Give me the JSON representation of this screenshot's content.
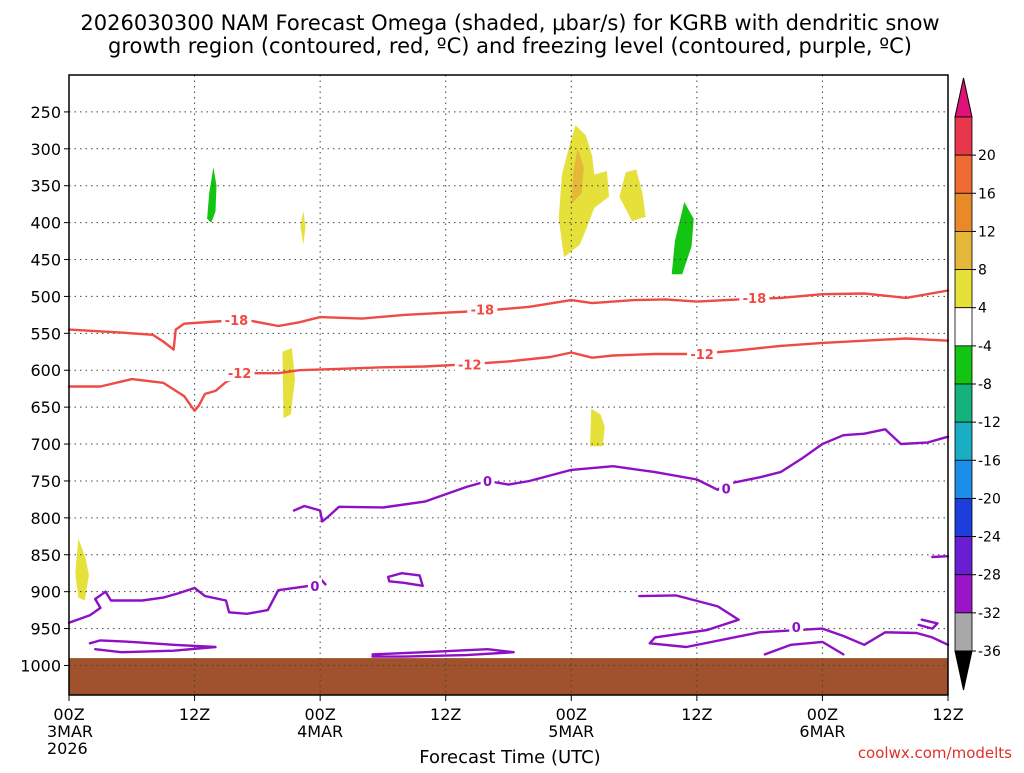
{
  "chart_data": {
    "type": "heatmap",
    "title_line1": "2026030300 NAM Forecast Omega (shaded, μbar/s) for KGRB with dendritic snow",
    "title_line2": "growth region (contoured, red, ºC) and freezing level (contoured, purple, ºC)",
    "xlabel": "Forecast Time (UTC)",
    "credit": "coolwx.com/modelts",
    "x_unit": "hours since 2026-03-03 00Z",
    "xlim": [
      0,
      84
    ],
    "y_unit": "hPa",
    "ylim": [
      200,
      1040
    ],
    "x_ticks": [
      {
        "h": 0,
        "label": "00Z",
        "date": "3MAR",
        "year": "2026"
      },
      {
        "h": 12,
        "label": "12Z",
        "date": "",
        "year": ""
      },
      {
        "h": 24,
        "label": "00Z",
        "date": "4MAR",
        "year": ""
      },
      {
        "h": 36,
        "label": "12Z",
        "date": "",
        "year": ""
      },
      {
        "h": 48,
        "label": "00Z",
        "date": "5MAR",
        "year": ""
      },
      {
        "h": 60,
        "label": "12Z",
        "date": "",
        "year": ""
      },
      {
        "h": 72,
        "label": "00Z",
        "date": "6MAR",
        "year": ""
      },
      {
        "h": 84,
        "label": "12Z",
        "date": "",
        "year": ""
      }
    ],
    "y_ticks": [
      250,
      300,
      350,
      400,
      450,
      500,
      550,
      600,
      650,
      700,
      750,
      800,
      850,
      900,
      950,
      1000
    ],
    "colorbar": {
      "labels": [
        "20",
        "16",
        "12",
        "8",
        "4",
        "-4",
        "-8",
        "-12",
        "-16",
        "-20",
        "-24",
        "-28",
        "-32",
        "-36"
      ],
      "colors": [
        "#e8364c",
        "#f06a34",
        "#e88a28",
        "#e6b83a",
        "#e6e03a",
        "#ffffff",
        "#13c413",
        "#14b27c",
        "#1aaec4",
        "#1a8ee8",
        "#1c3fdc",
        "#6a1ed4",
        "#9a14c8",
        "#a8a8a8"
      ],
      "top_arrow_color": "#e0127a",
      "bottom_arrow_color": "#000000"
    },
    "terrain_color": "#a0522d",
    "terrain_top_hPa": 990,
    "omega_regions": [
      {
        "name": "omega-minus-6-a",
        "value": -6,
        "color": "#13c413",
        "pts": [
          [
            13.2,
            395
          ],
          [
            13.4,
            360
          ],
          [
            13.8,
            325
          ],
          [
            14.1,
            350
          ],
          [
            14.0,
            385
          ],
          [
            13.6,
            400
          ]
        ]
      },
      {
        "name": "omega-plus-5-a",
        "value": 5,
        "color": "#e6e03a",
        "pts": [
          [
            22.1,
            405
          ],
          [
            22.4,
            385
          ],
          [
            22.6,
            405
          ],
          [
            22.4,
            430
          ]
        ]
      },
      {
        "name": "omega-plus-5-b",
        "value": 5,
        "color": "#e6e03a",
        "pts": [
          [
            20.4,
            575
          ],
          [
            21.3,
            570
          ],
          [
            21.6,
            612
          ],
          [
            21.2,
            660
          ],
          [
            20.5,
            665
          ]
        ]
      },
      {
        "name": "omega-plus-5-c",
        "value": 5,
        "color": "#e6e03a",
        "pts": [
          [
            0.6,
            875
          ],
          [
            0.9,
            828
          ],
          [
            1.6,
            855
          ],
          [
            1.9,
            878
          ],
          [
            1.5,
            912
          ],
          [
            0.9,
            908
          ]
        ]
      },
      {
        "name": "omega-plus-5-d",
        "value": 5,
        "color": "#e6e03a",
        "pts": [
          [
            47.3,
            447
          ],
          [
            46.8,
            395
          ],
          [
            47.1,
            335
          ],
          [
            47.9,
            292
          ],
          [
            48.4,
            268
          ],
          [
            49.4,
            282
          ],
          [
            50.0,
            310
          ],
          [
            50.2,
            335
          ],
          [
            51.4,
            330
          ],
          [
            51.6,
            365
          ],
          [
            50.2,
            380
          ],
          [
            49.4,
            410
          ],
          [
            48.8,
            430
          ]
        ]
      },
      {
        "name": "omega-plus-9-d",
        "value": 9,
        "color": "#e6b83a",
        "pts": [
          [
            48.0,
            375
          ],
          [
            48.2,
            330
          ],
          [
            48.6,
            300
          ],
          [
            49.2,
            325
          ],
          [
            49.0,
            360
          ]
        ]
      },
      {
        "name": "omega-plus-5-e",
        "value": 5,
        "color": "#e6e03a",
        "pts": [
          [
            52.6,
            365
          ],
          [
            53.2,
            332
          ],
          [
            54.2,
            328
          ],
          [
            54.8,
            360
          ],
          [
            55.1,
            392
          ],
          [
            53.8,
            398
          ]
        ]
      },
      {
        "name": "omega-minus-6-b",
        "value": -6,
        "color": "#13c413",
        "pts": [
          [
            57.6,
            470
          ],
          [
            57.9,
            425
          ],
          [
            58.8,
            372
          ],
          [
            59.7,
            395
          ],
          [
            59.5,
            432
          ],
          [
            58.6,
            470
          ]
        ]
      },
      {
        "name": "omega-plus-5-f",
        "value": 5,
        "color": "#e6e03a",
        "pts": [
          [
            49.8,
            703
          ],
          [
            49.9,
            652
          ],
          [
            50.8,
            660
          ],
          [
            51.2,
            677
          ],
          [
            51.0,
            703
          ]
        ]
      }
    ],
    "contours": [
      {
        "name": "contour-minus-18",
        "label": "-18",
        "color": "#ef4a44",
        "label_at": [
          [
            16.0,
            532
          ],
          [
            39.5,
            518
          ],
          [
            65.5,
            502
          ]
        ],
        "pts": [
          [
            0,
            545
          ],
          [
            5,
            549
          ],
          [
            8,
            552
          ],
          [
            9,
            561
          ],
          [
            10,
            572
          ],
          [
            10.2,
            545
          ],
          [
            11,
            537
          ],
          [
            14,
            534
          ],
          [
            17,
            532
          ],
          [
            20,
            540
          ],
          [
            22,
            535
          ],
          [
            24,
            528
          ],
          [
            28,
            530
          ],
          [
            32,
            525
          ],
          [
            36,
            522
          ],
          [
            40,
            519
          ],
          [
            44,
            514
          ],
          [
            48,
            505
          ],
          [
            50,
            509
          ],
          [
            54,
            505
          ],
          [
            57,
            504
          ],
          [
            60,
            507
          ],
          [
            64,
            504
          ],
          [
            68,
            502
          ],
          [
            72,
            497
          ],
          [
            76,
            496
          ],
          [
            80,
            502
          ],
          [
            84,
            492
          ]
        ]
      },
      {
        "name": "contour-minus-12",
        "label": "-12",
        "color": "#ef4a44",
        "label_at": [
          [
            16.3,
            604
          ],
          [
            38.3,
            592
          ],
          [
            60.5,
            578
          ]
        ],
        "pts": [
          [
            0,
            622
          ],
          [
            3,
            622
          ],
          [
            6,
            612
          ],
          [
            9,
            617
          ],
          [
            11,
            635
          ],
          [
            12,
            655
          ],
          [
            12.4,
            648
          ],
          [
            13,
            632
          ],
          [
            14,
            628
          ],
          [
            15,
            616
          ],
          [
            17,
            604
          ],
          [
            20,
            604
          ],
          [
            22,
            600
          ],
          [
            26,
            598
          ],
          [
            30,
            596
          ],
          [
            34,
            595
          ],
          [
            38,
            592
          ],
          [
            42,
            588
          ],
          [
            46,
            582
          ],
          [
            48,
            576
          ],
          [
            50,
            583
          ],
          [
            52,
            580
          ],
          [
            56,
            578
          ],
          [
            60,
            578
          ],
          [
            64,
            573
          ],
          [
            68,
            567
          ],
          [
            72,
            563
          ],
          [
            76,
            560
          ],
          [
            80,
            557
          ],
          [
            84,
            560
          ]
        ]
      },
      {
        "name": "contour-freezing-main",
        "label": "0",
        "color": "#8e10c4",
        "label_at": [
          [
            40.0,
            750
          ],
          [
            62.8,
            760
          ]
        ],
        "pts": [
          [
            21.5,
            790
          ],
          [
            22.5,
            784
          ],
          [
            24.0,
            790
          ],
          [
            24.2,
            805
          ],
          [
            24.8,
            798
          ],
          [
            25.8,
            785
          ],
          [
            30,
            786
          ],
          [
            34,
            778
          ],
          [
            38,
            758
          ],
          [
            40,
            750
          ],
          [
            42,
            755
          ],
          [
            44,
            750
          ],
          [
            48,
            735
          ],
          [
            52,
            730
          ],
          [
            56,
            738
          ],
          [
            60,
            748
          ],
          [
            62,
            762
          ],
          [
            62.6,
            755
          ],
          [
            66,
            745
          ],
          [
            68,
            738
          ],
          [
            70,
            720
          ],
          [
            72,
            700
          ],
          [
            74,
            688
          ],
          [
            76,
            686
          ],
          [
            78,
            680
          ],
          [
            79.5,
            700
          ],
          [
            82,
            698
          ],
          [
            84,
            690
          ]
        ]
      },
      {
        "name": "contour-freezing-low",
        "label": "0",
        "color": "#8e10c4",
        "label_at": [
          [
            23.5,
            892
          ]
        ],
        "pts": [
          [
            0,
            942
          ],
          [
            2,
            932
          ],
          [
            3,
            922
          ],
          [
            2.5,
            910
          ],
          [
            3.5,
            900
          ],
          [
            4,
            912
          ],
          [
            7,
            912
          ],
          [
            9,
            908
          ],
          [
            10.5,
            902
          ],
          [
            12,
            895
          ],
          [
            13,
            906
          ],
          [
            15,
            912
          ],
          [
            15.3,
            928
          ],
          [
            17,
            930
          ],
          [
            19,
            925
          ],
          [
            20,
            898
          ],
          [
            23,
            892
          ],
          [
            24,
            882
          ],
          [
            24.5,
            890
          ]
        ]
      },
      {
        "name": "contour-freezing-loop",
        "label": "",
        "color": "#8e10c4",
        "label_at": [],
        "pts": [
          [
            30.5,
            880
          ],
          [
            31.8,
            875
          ],
          [
            33.5,
            878
          ],
          [
            33.8,
            892
          ],
          [
            32,
            888
          ],
          [
            30.6,
            886
          ],
          [
            30.5,
            880
          ]
        ]
      },
      {
        "name": "contour-freezing-bottom",
        "label": "",
        "color": "#8e10c4",
        "label_at": [],
        "pts": [
          [
            2,
            970
          ],
          [
            3,
            966
          ],
          [
            6,
            968
          ],
          [
            10,
            972
          ],
          [
            14,
            975
          ],
          [
            10,
            980
          ],
          [
            5,
            982
          ],
          [
            2.5,
            978
          ]
        ]
      },
      {
        "name": "contour-freezing-bottom-2",
        "label": "",
        "color": "#8e10c4",
        "label_at": [],
        "pts": [
          [
            29,
            985
          ],
          [
            34,
            982
          ],
          [
            40,
            978
          ],
          [
            42.5,
            982
          ],
          [
            38,
            986
          ],
          [
            32,
            988
          ],
          [
            29,
            988
          ]
        ]
      },
      {
        "name": "contour-freezing-east",
        "label": "0",
        "color": "#8e10c4",
        "label_at": [
          [
            69.5,
            948
          ]
        ],
        "pts": [
          [
            54.5,
            906
          ],
          [
            58,
            905
          ],
          [
            62,
            920
          ],
          [
            64,
            938
          ],
          [
            61,
            952
          ],
          [
            56,
            962
          ],
          [
            55.5,
            970
          ],
          [
            59,
            975
          ],
          [
            66,
            955
          ],
          [
            72,
            950
          ],
          [
            74,
            960
          ],
          [
            76,
            972
          ],
          [
            78,
            955
          ],
          [
            81,
            956
          ],
          [
            82.5,
            962
          ],
          [
            84,
            972
          ]
        ]
      },
      {
        "name": "contour-freezing-east-2",
        "label": "",
        "color": "#8e10c4",
        "label_at": [],
        "pts": [
          [
            66.5,
            985
          ],
          [
            69,
            972
          ],
          [
            72,
            968
          ],
          [
            74,
            985
          ]
        ]
      },
      {
        "name": "contour-freezing-east-3",
        "label": "",
        "color": "#8e10c4",
        "label_at": [],
        "pts": [
          [
            81.5,
            938
          ],
          [
            83,
            943
          ],
          [
            82.5,
            950
          ],
          [
            81.2,
            945
          ]
        ]
      },
      {
        "name": "contour-freezing-east-4",
        "label": "",
        "color": "#8e10c4",
        "label_at": [],
        "pts": [
          [
            82.5,
            853
          ],
          [
            84,
            852
          ]
        ]
      }
    ]
  }
}
